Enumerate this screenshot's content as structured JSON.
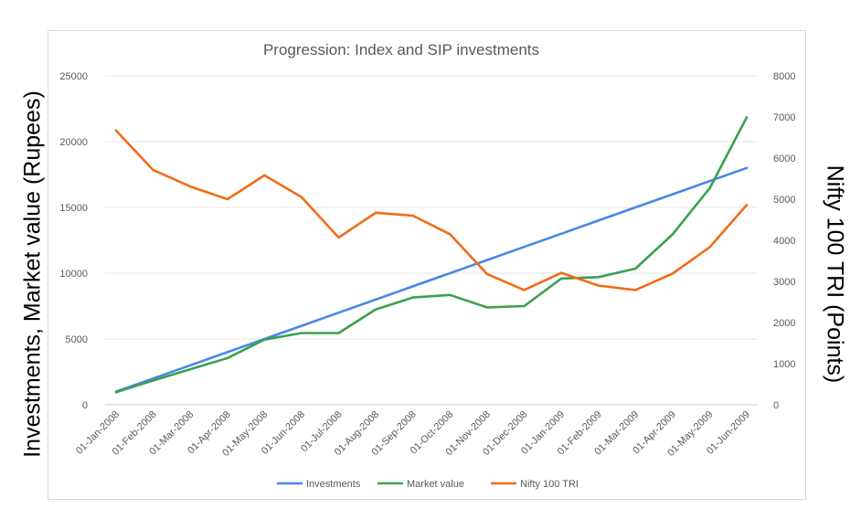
{
  "chart_data": {
    "type": "line",
    "title": "Progression: Index and SIP investments",
    "ylabel": "Investments, Market value (Rupees)",
    "y2label": "Nifty 100 TRI (Points)",
    "ylim": [
      0,
      25000
    ],
    "y2lim": [
      0,
      8000
    ],
    "yticks": [
      "0",
      "5000",
      "10000",
      "15000",
      "20000",
      "25000"
    ],
    "y2ticks": [
      "0",
      "1000",
      "2000",
      "3000",
      "4000",
      "5000",
      "6000",
      "7000",
      "8000"
    ],
    "grid": true,
    "legend_position": "bottom",
    "categories": [
      "01-Jan-2008",
      "01-Feb-2008",
      "01-Mar-2008",
      "01-Apr-2008",
      "01-May-2008",
      "01-Jun-2008",
      "01-Jul-2008",
      "01-Aug-2008",
      "01-Sep-2008",
      "01-Oct-2008",
      "01-Nov-2008",
      "01-Dec-2008",
      "01-Jan-2009",
      "01-Feb-2009",
      "01-Mar-2009",
      "01-Apr-2009",
      "01-May-2009",
      "01-Jun-2009"
    ],
    "series": [
      {
        "name": "Investments",
        "axis": "left",
        "color": "#4a86e8",
        "values": [
          1000,
          2000,
          3000,
          4000,
          5000,
          6000,
          7000,
          8000,
          9000,
          10000,
          11000,
          12000,
          13000,
          14000,
          15000,
          16000,
          17000,
          18000
        ]
      },
      {
        "name": "Market value",
        "axis": "left",
        "color": "#3ba150",
        "values": [
          950,
          1850,
          2700,
          3550,
          4950,
          5450,
          5450,
          7250,
          8150,
          8350,
          7400,
          7500,
          9600,
          9700,
          10350,
          12950,
          16450,
          21850
        ]
      },
      {
        "name": "Nifty 100 TRI",
        "axis": "right",
        "color": "#f26b16",
        "values": [
          6670,
          5710,
          5310,
          5000,
          5580,
          5050,
          4070,
          4670,
          4600,
          4150,
          3180,
          2790,
          3210,
          2900,
          2790,
          3190,
          3830,
          4860
        ]
      }
    ]
  }
}
